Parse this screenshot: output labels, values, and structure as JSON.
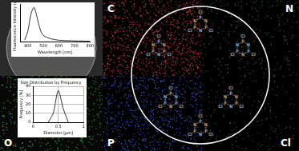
{
  "chart_data": [
    {
      "type": "line",
      "x_label": "Wavelength [nm]",
      "y_label": "Fluorescence Intensity (a.u.)",
      "x": [
        380,
        400,
        420,
        440,
        460,
        480,
        500,
        550,
        600,
        700,
        800
      ],
      "values": [
        0.05,
        0.3,
        0.8,
        1.0,
        0.7,
        0.35,
        0.18,
        0.08,
        0.04,
        0.02,
        0.01
      ],
      "color": "#000000",
      "xlim": [
        350,
        800
      ],
      "xticks": [
        400,
        500,
        600,
        700,
        800
      ],
      "ylim": [
        0,
        1.1
      ],
      "tick_labels": "x",
      "grid": false
    },
    {
      "type": "line",
      "title": "Size Distribution by Frequency",
      "x_label": "Diameter [µm]",
      "y_label": "Frequency [%]",
      "x": [
        0.3,
        0.4,
        0.5,
        0.6,
        0.7
      ],
      "values": [
        0,
        10,
        35,
        15,
        0
      ],
      "color": "#000000",
      "xlim": [
        0,
        1
      ],
      "xticks": [
        0,
        0.5,
        1
      ],
      "ylim": [
        0,
        40
      ],
      "yticks": [
        0,
        10,
        20,
        30,
        40
      ],
      "grid": true
    }
  ],
  "element_maps": [
    {
      "label": "C",
      "color": "#d23a3a"
    },
    {
      "label": "N",
      "color": "#2f6b3a"
    },
    {
      "label": "P",
      "color": "#3a55d2"
    },
    {
      "label": "Cl",
      "color": "#4a4a4a"
    },
    {
      "label": "O",
      "color": "#3aa040"
    }
  ],
  "structure": {
    "atoms": [
      "P",
      "N",
      "Cl"
    ]
  }
}
